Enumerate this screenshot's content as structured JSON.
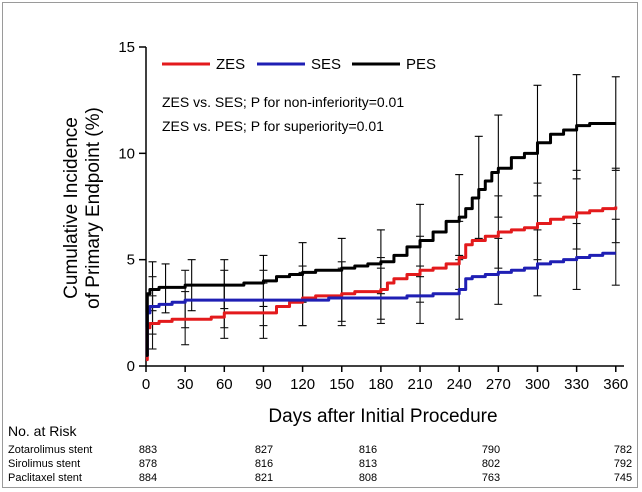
{
  "chart_data": {
    "type": "line",
    "title": "",
    "xlabel": "Days after Initial Procedure",
    "ylabel_lines": [
      "Cumulative Incidence",
      "of Primary Endpoint (%)"
    ],
    "xlim": [
      0,
      364
    ],
    "ylim": [
      0,
      15
    ],
    "x_ticks": [
      0,
      30,
      60,
      90,
      120,
      150,
      180,
      210,
      240,
      270,
      300,
      330,
      360
    ],
    "y_ticks": [
      0,
      5,
      10,
      15
    ],
    "grid": false,
    "legend_position": "top",
    "annotations": [
      "ZES vs. SES; P for non-inferiority=0.01",
      "ZES vs. PES; P for superiority=0.01"
    ],
    "series": [
      {
        "name": "ZES",
        "color": "#e31a1c",
        "x": [
          0,
          1,
          3,
          10,
          20,
          30,
          40,
          50,
          60,
          75,
          90,
          100,
          110,
          120,
          130,
          140,
          150,
          160,
          170,
          180,
          185,
          190,
          200,
          210,
          220,
          230,
          240,
          245,
          250,
          260,
          270,
          280,
          290,
          300,
          310,
          320,
          330,
          340,
          350,
          360
        ],
        "y": [
          0.3,
          1.8,
          2.0,
          2.1,
          2.2,
          2.2,
          2.2,
          2.3,
          2.5,
          2.5,
          2.5,
          2.8,
          3.0,
          3.2,
          3.3,
          3.3,
          3.4,
          3.5,
          3.5,
          3.6,
          3.9,
          4.1,
          4.3,
          4.5,
          4.6,
          4.8,
          5.1,
          5.7,
          5.9,
          6.1,
          6.3,
          6.4,
          6.5,
          6.7,
          6.9,
          7.0,
          7.2,
          7.3,
          7.4,
          7.5
        ]
      },
      {
        "name": "SES",
        "color": "#1f1fb4",
        "x": [
          0,
          1,
          3,
          10,
          20,
          30,
          40,
          50,
          60,
          90,
          100,
          110,
          120,
          140,
          160,
          180,
          200,
          220,
          240,
          245,
          250,
          260,
          270,
          280,
          290,
          300,
          310,
          320,
          330,
          340,
          350,
          360
        ],
        "y": [
          0.5,
          2.5,
          2.8,
          2.9,
          3.0,
          3.1,
          3.1,
          3.1,
          3.1,
          3.1,
          3.1,
          3.1,
          3.1,
          3.2,
          3.2,
          3.2,
          3.3,
          3.4,
          3.6,
          4.1,
          4.2,
          4.3,
          4.4,
          4.5,
          4.6,
          4.8,
          4.9,
          5.0,
          5.1,
          5.2,
          5.3,
          5.3
        ]
      },
      {
        "name": "PES",
        "color": "#000000",
        "x": [
          0,
          1,
          3,
          10,
          20,
          30,
          40,
          50,
          60,
          75,
          90,
          100,
          110,
          120,
          130,
          140,
          150,
          160,
          170,
          180,
          190,
          200,
          210,
          220,
          230,
          240,
          245,
          250,
          255,
          260,
          265,
          270,
          280,
          290,
          300,
          310,
          320,
          330,
          340,
          350,
          360
        ],
        "y": [
          0.5,
          3.4,
          3.6,
          3.7,
          3.7,
          3.8,
          3.8,
          3.8,
          3.8,
          3.9,
          4.0,
          4.2,
          4.3,
          4.4,
          4.5,
          4.5,
          4.6,
          4.7,
          4.8,
          4.9,
          5.2,
          5.6,
          5.9,
          6.3,
          6.8,
          7.0,
          7.4,
          7.9,
          8.3,
          8.7,
          9.1,
          9.3,
          9.8,
          10.0,
          10.5,
          10.9,
          11.1,
          11.3,
          11.4,
          11.4,
          11.4
        ]
      }
    ],
    "error_bars": [
      {
        "series": "PES",
        "points": [
          [
            5,
            3.7,
            2.6,
            4.9
          ],
          [
            15,
            3.7,
            2.5,
            4.8
          ],
          [
            35,
            3.8,
            2.6,
            5.0
          ],
          [
            60,
            3.8,
            2.7,
            5.0
          ],
          [
            90,
            4.0,
            2.8,
            5.2
          ],
          [
            120,
            4.4,
            3.0,
            5.8
          ],
          [
            150,
            4.6,
            3.2,
            6.0
          ],
          [
            180,
            4.9,
            3.4,
            6.4
          ],
          [
            210,
            5.9,
            4.2,
            7.6
          ],
          [
            240,
            7.0,
            5.2,
            9.0
          ],
          [
            255,
            8.3,
            6.0,
            10.8
          ],
          [
            270,
            9.3,
            7.0,
            11.8
          ],
          [
            300,
            10.5,
            8.0,
            13.2
          ],
          [
            330,
            11.3,
            8.8,
            13.7
          ],
          [
            360,
            11.4,
            9.2,
            13.6
          ]
        ]
      },
      {
        "series": "ZES",
        "points": [
          [
            5,
            2.0,
            0.8,
            3.3
          ],
          [
            30,
            2.2,
            1.0,
            3.5
          ],
          [
            60,
            2.5,
            1.3,
            3.8
          ],
          [
            90,
            2.5,
            1.3,
            3.9
          ],
          [
            120,
            3.2,
            1.9,
            4.7
          ],
          [
            150,
            3.4,
            2.1,
            4.9
          ],
          [
            180,
            3.6,
            2.2,
            5.1
          ],
          [
            210,
            4.5,
            3.0,
            6.1
          ],
          [
            240,
            5.1,
            3.6,
            6.8
          ],
          [
            270,
            6.3,
            4.6,
            8.0
          ],
          [
            300,
            6.7,
            5.0,
            8.6
          ],
          [
            330,
            7.2,
            5.5,
            9.2
          ],
          [
            360,
            7.5,
            5.8,
            9.3
          ]
        ]
      },
      {
        "series": "SES",
        "points": [
          [
            5,
            2.8,
            1.5,
            4.2
          ],
          [
            30,
            3.1,
            1.8,
            4.5
          ],
          [
            60,
            3.1,
            1.8,
            4.5
          ],
          [
            90,
            3.1,
            1.9,
            4.5
          ],
          [
            120,
            3.1,
            1.9,
            4.4
          ],
          [
            150,
            3.2,
            1.9,
            4.6
          ],
          [
            180,
            3.2,
            2.0,
            4.6
          ],
          [
            210,
            3.3,
            2.0,
            4.7
          ],
          [
            240,
            3.6,
            2.2,
            5.0
          ],
          [
            270,
            4.4,
            2.9,
            6.0
          ],
          [
            300,
            4.8,
            3.3,
            6.4
          ],
          [
            330,
            5.1,
            3.6,
            6.7
          ],
          [
            360,
            5.3,
            3.8,
            6.9
          ]
        ]
      }
    ]
  },
  "risk_table": {
    "title": "No. at Risk",
    "rows": [
      {
        "label": "Zotarolimus stent",
        "values": [
          "883",
          "827",
          "816",
          "790",
          "782"
        ]
      },
      {
        "label": "Sirolimus stent",
        "values": [
          "878",
          "816",
          "813",
          "802",
          "792"
        ]
      },
      {
        "label": "Paclitaxel stent",
        "values": [
          "884",
          "821",
          "808",
          "763",
          "745"
        ]
      }
    ]
  }
}
